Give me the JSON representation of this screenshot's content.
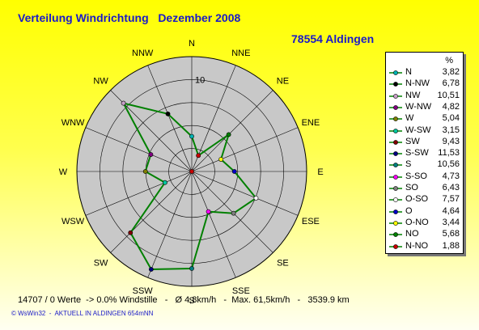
{
  "title": "Verteilung Windrichtung   Dezember 2008",
  "location": "78554 Aldingen",
  "chart_data": {
    "type": "radar",
    "title": "Verteilung Windrichtung   Dezember 2008",
    "subtitle": "78554 Aldingen",
    "directions": [
      "N",
      "NNE",
      "NE",
      "ENE",
      "E",
      "ESE",
      "SE",
      "SSE",
      "S",
      "SSW",
      "SW",
      "WSW",
      "W",
      "WNW",
      "NW",
      "NNW"
    ],
    "radial_tick_label": "10",
    "radial_max": 12.5,
    "grid": true,
    "legend_position": "right",
    "legend_header": "%",
    "series": [
      {
        "name": "N",
        "direction": "N",
        "value": 3.82,
        "display": "3,82",
        "color": "#00b4b4"
      },
      {
        "name": "N-NW",
        "direction": "NNW",
        "value": 6.78,
        "display": "6,78",
        "color": "#000000"
      },
      {
        "name": "NW",
        "direction": "NW",
        "value": 10.51,
        "display": "10,51",
        "color": "#c8a0c8"
      },
      {
        "name": "W-NW",
        "direction": "WNW",
        "value": 4.82,
        "display": "4,82",
        "color": "#800080"
      },
      {
        "name": "W",
        "direction": "W",
        "value": 5.04,
        "display": "5,04",
        "color": "#808000"
      },
      {
        "name": "W-SW",
        "direction": "WSW",
        "value": 3.15,
        "display": "3,15",
        "color": "#00c8a0"
      },
      {
        "name": "SW",
        "direction": "SW",
        "value": 9.43,
        "display": "9,43",
        "color": "#800000"
      },
      {
        "name": "S-SW",
        "direction": "SSW",
        "value": 11.53,
        "display": "11,53",
        "color": "#000080"
      },
      {
        "name": "S",
        "direction": "S",
        "value": 10.56,
        "display": "10,56",
        "color": "#008080"
      },
      {
        "name": "S-SO",
        "direction": "SSE",
        "value": 4.73,
        "display": "4,73",
        "color": "#ff00ff"
      },
      {
        "name": "SO",
        "direction": "SE",
        "value": 6.43,
        "display": "6,43",
        "color": "#808080"
      },
      {
        "name": "O-SO",
        "direction": "ESE",
        "value": 7.57,
        "display": "7,57",
        "color": "#ffffff"
      },
      {
        "name": "O",
        "direction": "E",
        "value": 4.64,
        "display": "4,64",
        "color": "#0000c8"
      },
      {
        "name": "O-NO",
        "direction": "ENE",
        "value": 3.44,
        "display": "3,44",
        "color": "#ffff00"
      },
      {
        "name": "NO",
        "direction": "NE",
        "value": 5.68,
        "display": "5,68",
        "color": "#008000"
      },
      {
        "name": "N-NO",
        "direction": "NNE",
        "value": 1.88,
        "display": "1,88",
        "color": "#c80000"
      }
    ],
    "line_color": "#008000"
  },
  "footer": "14707 / 0 Werte  -> 0.0% Windstille   -   Ø 4,8km/h   -  Max. 61,5km/h   -   3539.9 km",
  "copyright": "© WsWin32  -  AKTUELL IN ALDINGEN 654mNN"
}
